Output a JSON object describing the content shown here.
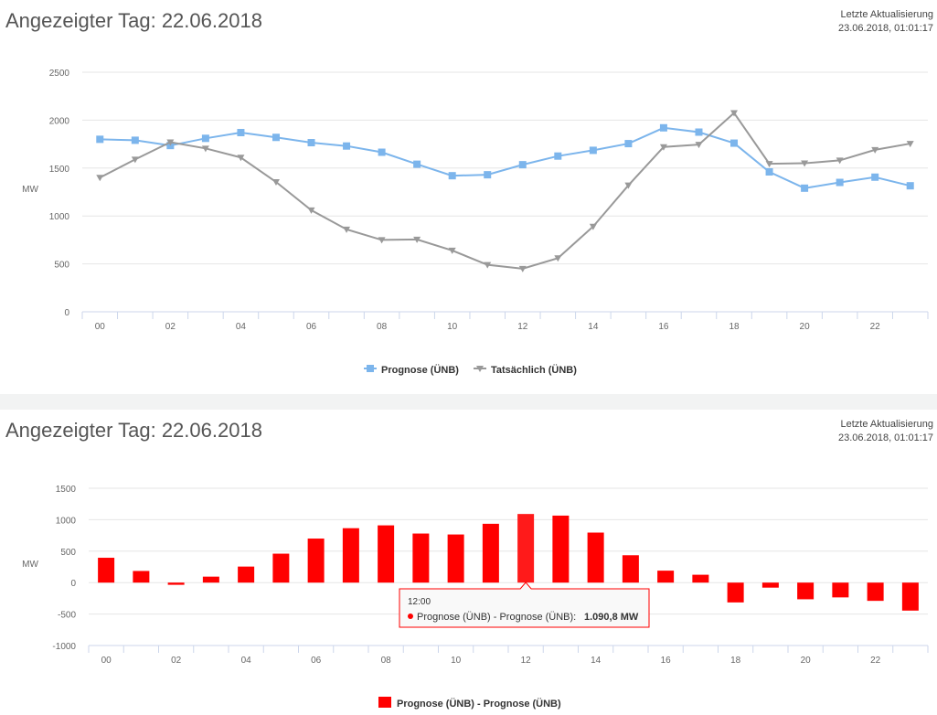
{
  "panels": [
    {
      "title": "Angezeigter Tag: 22.06.2018",
      "update_label": "Letzte Aktualisierung",
      "update_time": "23.06.2018, 01:01:17"
    },
    {
      "title": "Angezeigter Tag: 22.06.2018",
      "update_label": "Letzte Aktualisierung",
      "update_time": "23.06.2018, 01:01:17"
    }
  ],
  "chart_data": [
    {
      "type": "line",
      "ylabel": "MW",
      "ylim": [
        0,
        2500
      ],
      "yticks": [
        "0",
        "500",
        "1000",
        "1500",
        "2000",
        "2500"
      ],
      "categories": [
        "00",
        "01",
        "02",
        "03",
        "04",
        "05",
        "06",
        "07",
        "08",
        "09",
        "10",
        "11",
        "12",
        "13",
        "14",
        "15",
        "16",
        "17",
        "18",
        "19",
        "20",
        "21",
        "22",
        "23"
      ],
      "xtick_labels": [
        "00",
        "02",
        "04",
        "06",
        "08",
        "10",
        "12",
        "14",
        "16",
        "18",
        "20",
        "22"
      ],
      "series": [
        {
          "name": "Prognose (ÜNB)",
          "color": "#7cb5ec",
          "marker": "square",
          "values": [
            1800,
            1790,
            1735,
            1810,
            1870,
            1820,
            1765,
            1730,
            1665,
            1540,
            1420,
            1430,
            1535,
            1625,
            1685,
            1755,
            1920,
            1875,
            1760,
            1460,
            1290,
            1350,
            1405,
            1315
          ]
        },
        {
          "name": "Tatsächlich (ÜNB)",
          "color": "#999999",
          "marker": "triangle-down",
          "values": [
            1400,
            1590,
            1770,
            1705,
            1610,
            1355,
            1060,
            860,
            750,
            755,
            640,
            490,
            450,
            560,
            890,
            1320,
            1720,
            1745,
            2075,
            1545,
            1550,
            1580,
            1690,
            1755
          ]
        }
      ],
      "legend": "bottom-center",
      "grid": true
    },
    {
      "type": "bar",
      "ylabel": "MW",
      "ylim": [
        -1000,
        1500
      ],
      "yticks": [
        "-1000",
        "-500",
        "0",
        "500",
        "1000",
        "1500"
      ],
      "categories": [
        "00",
        "01",
        "02",
        "03",
        "04",
        "05",
        "06",
        "07",
        "08",
        "09",
        "10",
        "11",
        "12",
        "13",
        "14",
        "15",
        "16",
        "17",
        "18",
        "19",
        "20",
        "21",
        "22",
        "23"
      ],
      "xtick_labels": [
        "00",
        "02",
        "04",
        "06",
        "08",
        "10",
        "12",
        "14",
        "16",
        "18",
        "20",
        "22"
      ],
      "series": [
        {
          "name": "Prognose (ÜNB) - Prognose (ÜNB)",
          "color": "#ff0000",
          "values": [
            395,
            185,
            -35,
            95,
            255,
            460,
            700,
            865,
            910,
            780,
            765,
            935,
            1090.8,
            1065,
            795,
            435,
            190,
            125,
            -315,
            -80,
            -265,
            -235,
            -290,
            -445
          ]
        }
      ],
      "tooltip": {
        "header": "12:00",
        "series": "Prognose (ÜNB) - Prognose (ÜNB)",
        "value": "1.090,8 MW"
      },
      "legend": "bottom-center",
      "grid": true
    }
  ]
}
